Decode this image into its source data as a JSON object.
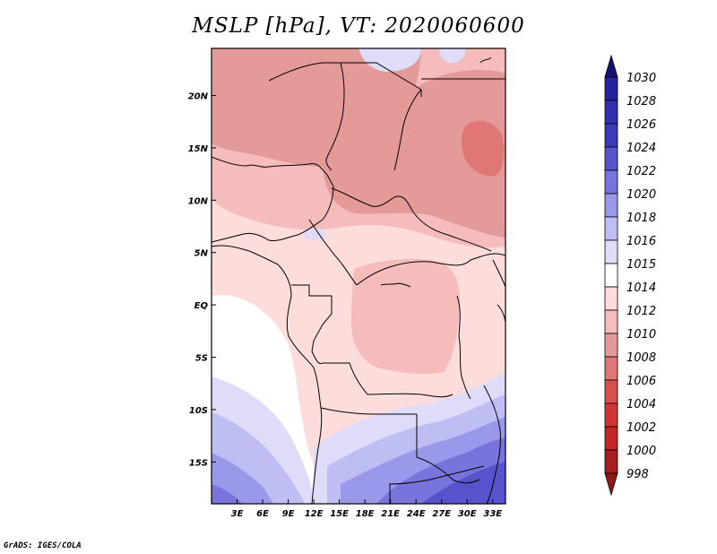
{
  "title": "MSLP [hPa], VT: 2020060600",
  "credit": "GrADS: IGES/COLA",
  "map": {
    "lon_range": [
      0,
      34.5
    ],
    "lat_range": [
      -19,
      24.5
    ],
    "lon_ticks": [
      "3E",
      "6E",
      "9E",
      "12E",
      "15E",
      "18E",
      "21E",
      "24E",
      "27E",
      "30E",
      "33E"
    ],
    "lat_ticks": [
      "20N",
      "15N",
      "10N",
      "5N",
      "EQ",
      "5S",
      "10S",
      "15S"
    ]
  },
  "colorbar": {
    "labels": [
      "1030",
      "1028",
      "1026",
      "1024",
      "1022",
      "1020",
      "1018",
      "1016",
      "1015",
      "1014",
      "1012",
      "1010",
      "1008",
      "1006",
      "1004",
      "1002",
      "1000",
      "998"
    ],
    "colors": [
      "#1f1a99",
      "#27229f",
      "#3230ae",
      "#3d3ab9",
      "#5753cc",
      "#7874dc",
      "#9a98ea",
      "#bebdf4",
      "#dedcf8",
      "#ffffff",
      "#fddcdc",
      "#f6bcbc",
      "#e59a9a",
      "#e07676",
      "#dc4f4f",
      "#d23434",
      "#c42525",
      "#a81d1d"
    ],
    "top_color": "#161273",
    "bottom_color": "#8e1616"
  },
  "pressure_field": {
    "dominant_low": "1008 hPa over Sudan/Chad",
    "dominant_high": "1022 hPa over southern Africa"
  }
}
